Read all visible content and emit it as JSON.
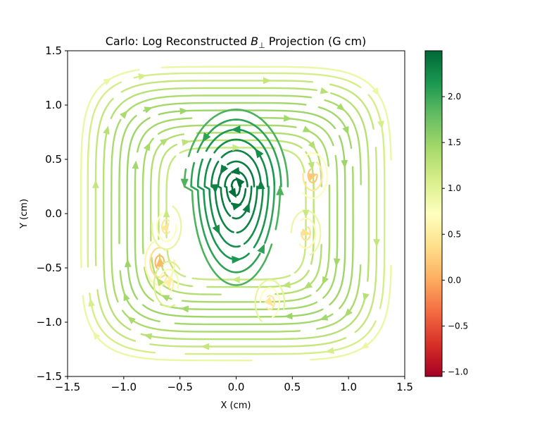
{
  "chart_data": {
    "type": "streamplot",
    "title": "Carlo: Log Reconstructed B⊥ Projection (G cm)",
    "title_main": "Carlo: Log Reconstructed ",
    "title_symbol": "B",
    "title_subscript": "⊥",
    "title_tail": " Projection (G cm)",
    "xlabel": "X (cm)",
    "ylabel": "Y (cm)",
    "xlim": [
      -1.5,
      1.5
    ],
    "ylim": [
      -1.5,
      1.5
    ],
    "xticks": [
      -1.5,
      -1.0,
      -0.5,
      0.0,
      0.5,
      1.0,
      1.5
    ],
    "yticks": [
      -1.5,
      -1.0,
      -0.5,
      0.0,
      0.5,
      1.0,
      1.5
    ],
    "xtick_labels": [
      "−1.5",
      "−1.0",
      "−0.5",
      "0.0",
      "0.5",
      "1.0",
      "1.5"
    ],
    "ytick_labels": [
      "−1.5",
      "−1.0",
      "−0.5",
      "0.0",
      "0.5",
      "1.0",
      "1.5"
    ],
    "colorbar": {
      "colormap": "RdYlGn",
      "range": [
        -1.05,
        2.5
      ],
      "ticks": [
        -1.0,
        -0.5,
        0.0,
        0.5,
        1.0,
        1.5,
        2.0
      ],
      "tick_labels": [
        "−1.0",
        "−0.5",
        "0.0",
        "0.5",
        "1.0",
        "1.5",
        "2.0"
      ],
      "stops": [
        "#a50026",
        "#d73027",
        "#f46d43",
        "#fdae61",
        "#fee08b",
        "#ffffbf",
        "#d9ef8b",
        "#a6d96a",
        "#66bd63",
        "#1a9850",
        "#006837"
      ]
    },
    "central_vortex": {
      "center": [
        0.0,
        0.25
      ],
      "rotation": "counter-clockwise",
      "contours": [
        {
          "a": 0.04,
          "b": 0.07,
          "log_value": 2.45
        },
        {
          "a": 0.1,
          "b": 0.15,
          "log_value": 2.4
        },
        {
          "a": 0.16,
          "b": 0.25,
          "log_value": 2.35
        },
        {
          "a": 0.22,
          "b": 0.36,
          "log_value": 2.3
        },
        {
          "a": 0.28,
          "b": 0.47,
          "log_value": 2.22
        },
        {
          "a": 0.34,
          "b": 0.57,
          "log_value": 2.15
        },
        {
          "a": 0.4,
          "b": 0.67,
          "log_value": 2.05
        },
        {
          "a": 0.46,
          "b": 0.77,
          "log_value": 1.9
        }
      ]
    },
    "outer_loops": {
      "center": [
        0.0,
        0.0
      ],
      "rotation": "clockwise",
      "contours": [
        {
          "h": 0.62,
          "log_value": 1.2
        },
        {
          "h": 0.69,
          "log_value": 1.28
        },
        {
          "h": 0.76,
          "log_value": 1.35
        },
        {
          "h": 0.83,
          "log_value": 1.42
        },
        {
          "h": 0.9,
          "log_value": 1.45
        },
        {
          "h": 0.97,
          "log_value": 1.48
        },
        {
          "h": 1.04,
          "log_value": 1.45
        },
        {
          "h": 1.11,
          "log_value": 1.4
        },
        {
          "h": 1.18,
          "log_value": 1.32
        },
        {
          "h": 1.25,
          "log_value": 1.22
        },
        {
          "h": 1.32,
          "log_value": 1.1
        },
        {
          "h": 1.38,
          "log_value": 0.9
        }
      ]
    },
    "weak_pockets": [
      {
        "x": -0.68,
        "y": -0.45,
        "log_value": 0.1
      },
      {
        "x": -0.62,
        "y": -0.12,
        "log_value": 0.45
      },
      {
        "x": 0.68,
        "y": 0.35,
        "log_value": 0.2
      },
      {
        "x": 0.62,
        "y": -0.18,
        "log_value": 0.4
      },
      {
        "x": 0.3,
        "y": -0.82,
        "log_value": 0.45
      },
      {
        "x": -0.6,
        "y": -0.65,
        "log_value": 0.55
      }
    ]
  }
}
